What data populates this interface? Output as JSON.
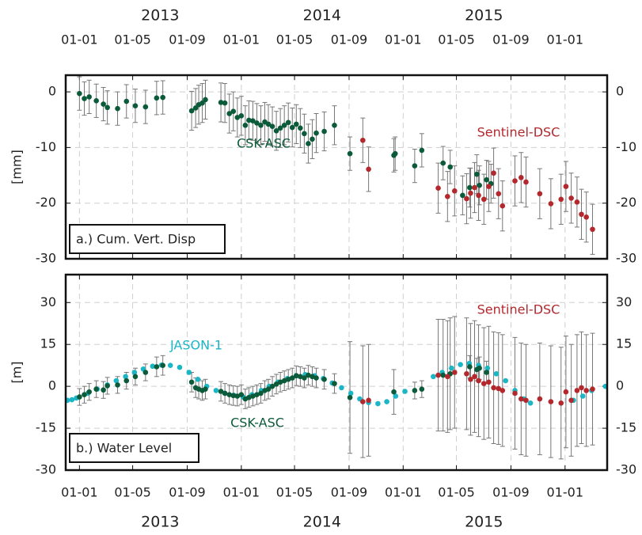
{
  "chart_data": [
    {
      "type": "scatter",
      "panel_label": "a.) Cum. Vert. Disp",
      "ylabel": "[mm]",
      "grid": true,
      "xlim": [
        "2012-12-01",
        "2016-04-05"
      ],
      "xticks": [
        {
          "value": "2013-01-01",
          "label": "01-01"
        },
        {
          "value": "2013-05-01",
          "label": "01-05"
        },
        {
          "value": "2013-09-01",
          "label": "01-09"
        },
        {
          "value": "2014-01-01",
          "label": "01-01"
        },
        {
          "value": "2014-05-01",
          "label": "01-05"
        },
        {
          "value": "2014-09-01",
          "label": "01-09"
        },
        {
          "value": "2015-01-01",
          "label": "01-01"
        },
        {
          "value": "2015-05-01",
          "label": "01-05"
        },
        {
          "value": "2015-09-01",
          "label": "01-09"
        },
        {
          "value": "2016-01-01",
          "label": "01-01"
        }
      ],
      "year_labels": [
        {
          "value": "2013-07-02",
          "label": "2013"
        },
        {
          "value": "2014-07-02",
          "label": "2014"
        },
        {
          "value": "2015-07-02",
          "label": "2015"
        }
      ],
      "ylim": [
        -30,
        3
      ],
      "yticks": [
        -30,
        -20,
        -10,
        0
      ],
      "series": [
        {
          "name": "CSK-ASC",
          "color": "#0b5a3a",
          "x": [
            "2013-01-01",
            "2013-01-12",
            "2013-01-23",
            "2013-02-08",
            "2013-02-24",
            "2013-03-05",
            "2013-03-28",
            "2013-04-17",
            "2013-05-07",
            "2013-05-30",
            "2013-06-24",
            "2013-07-08",
            "2013-09-11",
            "2013-09-20",
            "2013-09-27",
            "2013-10-05",
            "2013-10-12",
            "2013-11-16",
            "2013-11-25",
            "2013-12-05",
            "2013-12-14",
            "2013-12-23",
            "2014-01-01",
            "2014-01-10",
            "2014-01-18",
            "2014-01-27",
            "2014-02-05",
            "2014-02-14",
            "2014-02-23",
            "2014-03-03",
            "2014-03-12",
            "2014-03-21",
            "2014-03-30",
            "2014-04-08",
            "2014-04-17",
            "2014-04-26",
            "2014-05-05",
            "2014-05-14",
            "2014-05-23",
            "2014-06-01",
            "2014-06-10",
            "2014-06-19",
            "2014-07-07",
            "2014-07-30",
            "2014-09-03",
            "2014-12-11",
            "2014-12-14",
            "2015-01-27",
            "2015-02-12",
            "2015-04-01",
            "2015-04-17",
            "2015-05-15",
            "2015-05-31",
            "2015-06-16",
            "2015-06-22",
            "2015-07-08",
            "2015-07-18"
          ],
          "values": [
            -0.3,
            -1.2,
            -0.9,
            -1.6,
            -2.2,
            -2.8,
            -3.0,
            -1.7,
            -2.5,
            -2.7,
            -1.1,
            -1.0,
            -3.4,
            -2.9,
            -2.3,
            -2.0,
            -1.4,
            -1.9,
            -2.0,
            -3.9,
            -3.5,
            -4.6,
            -4.3,
            -6.0,
            -5.1,
            -5.2,
            -5.6,
            -6.0,
            -5.4,
            -5.8,
            -6.2,
            -7.0,
            -6.5,
            -6.0,
            -5.5,
            -6.4,
            -5.8,
            -6.5,
            -7.5,
            -9.3,
            -8.5,
            -7.4,
            -7.1,
            -6.0,
            -11.1,
            -11.4,
            -11.1,
            -13.3,
            -10.5,
            -12.8,
            -13.5,
            -18.6,
            -17.2,
            -14.8,
            -16.8,
            -15.8,
            -16.5
          ],
          "errors": [
            3,
            3,
            3,
            3,
            3,
            3,
            3,
            3,
            3,
            3,
            3,
            3,
            3.5,
            3.5,
            3.5,
            3.5,
            3.5,
            3.5,
            3.5,
            3.5,
            3.5,
            3.5,
            3.5,
            3.5,
            3.5,
            3.5,
            3.5,
            3.5,
            3.5,
            3.5,
            3.5,
            3.5,
            3.5,
            3.5,
            3.5,
            3.5,
            3.5,
            3.5,
            3.5,
            3.5,
            3.5,
            3.5,
            3.5,
            3.5,
            3,
            3,
            3,
            3,
            3,
            3,
            3,
            3.5,
            3.5,
            3.5,
            3.5,
            3.5,
            3.5
          ]
        },
        {
          "name": "Sentinel-DSC",
          "color": "#b3282d",
          "x": [
            "2014-10-02",
            "2014-10-15",
            "2015-03-21",
            "2015-04-11",
            "2015-04-27",
            "2015-05-24",
            "2015-06-02",
            "2015-06-11",
            "2015-06-20",
            "2015-07-02",
            "2015-07-13",
            "2015-07-24",
            "2015-08-04",
            "2015-08-13",
            "2015-09-10",
            "2015-09-24",
            "2015-10-05",
            "2015-11-05",
            "2015-11-30",
            "2015-12-23",
            "2016-01-03",
            "2016-01-15",
            "2016-01-28",
            "2016-02-07",
            "2016-02-18",
            "2016-03-03"
          ],
          "values": [
            -8.7,
            -13.9,
            -17.3,
            -18.8,
            -17.8,
            -19.2,
            -18.2,
            -17.2,
            -18.6,
            -19.3,
            -17.0,
            -14.6,
            -18.3,
            -20.5,
            -16.0,
            -15.4,
            -16.2,
            -18.3,
            -20.1,
            -19.3,
            -17.0,
            -19.1,
            -19.8,
            -22.0,
            -22.5,
            -24.7
          ],
          "errors": [
            4,
            4,
            4.5,
            4.5,
            4.5,
            4.5,
            4.5,
            4.5,
            4.5,
            4.5,
            4.5,
            4.5,
            4.5,
            4.5,
            4.5,
            4.5,
            4.5,
            4.5,
            4.5,
            4.5,
            4.5,
            4.5,
            4.5,
            4.5,
            4.5,
            4.5
          ]
        }
      ]
    },
    {
      "type": "scatter",
      "panel_label": "b.) Water Level",
      "ylabel": "[m]",
      "grid": true,
      "xlim": [
        "2012-12-01",
        "2016-04-05"
      ],
      "xticks": [
        {
          "value": "2013-01-01",
          "label": "01-01"
        },
        {
          "value": "2013-05-01",
          "label": "01-05"
        },
        {
          "value": "2013-09-01",
          "label": "01-09"
        },
        {
          "value": "2014-01-01",
          "label": "01-01"
        },
        {
          "value": "2014-05-01",
          "label": "01-05"
        },
        {
          "value": "2014-09-01",
          "label": "01-09"
        },
        {
          "value": "2015-01-01",
          "label": "01-01"
        },
        {
          "value": "2015-05-01",
          "label": "01-05"
        },
        {
          "value": "2015-09-01",
          "label": "01-09"
        },
        {
          "value": "2016-01-01",
          "label": "01-01"
        }
      ],
      "year_labels": [
        {
          "value": "2013-07-02",
          "label": "2013"
        },
        {
          "value": "2014-07-02",
          "label": "2014"
        },
        {
          "value": "2015-07-02",
          "label": "2015"
        }
      ],
      "ylim": [
        -30,
        40
      ],
      "yticks": [
        -30,
        -15,
        0,
        15,
        30
      ],
      "series": [
        {
          "name": "JASON-1",
          "color": "#1bb6c6",
          "x": [
            "2012-12-05",
            "2012-12-15",
            "2012-12-25",
            "2013-01-20",
            "2013-02-10",
            "2013-03-05",
            "2013-03-25",
            "2013-04-15",
            "2013-05-05",
            "2013-05-25",
            "2013-06-15",
            "2013-07-05",
            "2013-07-25",
            "2013-08-15",
            "2013-09-05",
            "2013-09-25",
            "2013-10-15",
            "2013-11-05",
            "2013-11-25",
            "2013-12-15",
            "2014-01-05",
            "2014-01-25",
            "2014-02-15",
            "2014-03-05",
            "2014-03-25",
            "2014-04-15",
            "2014-05-05",
            "2014-05-25",
            "2014-06-15",
            "2014-07-05",
            "2014-07-25",
            "2014-08-15",
            "2014-09-05",
            "2014-09-25",
            "2014-10-15",
            "2014-11-05",
            "2014-11-25",
            "2014-12-15",
            "2015-01-05",
            "2015-03-10",
            "2015-03-30",
            "2015-04-20",
            "2015-05-10",
            "2015-05-30",
            "2015-06-20",
            "2015-07-10",
            "2015-07-30",
            "2015-08-20",
            "2015-09-10",
            "2015-09-30",
            "2015-10-15",
            "2016-01-20",
            "2016-02-10",
            "2016-03-01",
            "2016-04-01"
          ],
          "values": [
            -5.0,
            -4.8,
            -4.2,
            -2.5,
            -1.0,
            0.5,
            2.0,
            3.5,
            5.0,
            6.2,
            7.2,
            7.6,
            7.5,
            6.8,
            5.0,
            2.5,
            0.0,
            -1.5,
            -2.5,
            -3.2,
            -3.8,
            -3.0,
            -1.5,
            0.0,
            1.5,
            2.8,
            3.8,
            4.2,
            3.8,
            2.8,
            1.2,
            -0.5,
            -2.5,
            -4.5,
            -5.8,
            -6.2,
            -5.5,
            -3.5,
            -1.8,
            3.5,
            5.0,
            6.5,
            7.8,
            8.2,
            7.5,
            6.5,
            4.5,
            2.0,
            -1.5,
            -4.5,
            -6.0,
            -5.0,
            -3.5,
            -1.5,
            0.0
          ]
        },
        {
          "name": "CSK-ASC",
          "color": "#0b5a3a",
          "x": [
            "2013-01-01",
            "2013-01-12",
            "2013-01-23",
            "2013-02-08",
            "2013-02-24",
            "2013-03-05",
            "2013-03-28",
            "2013-04-17",
            "2013-05-07",
            "2013-05-30",
            "2013-06-24",
            "2013-07-08",
            "2013-09-11",
            "2013-09-20",
            "2013-09-27",
            "2013-10-05",
            "2013-10-12",
            "2013-11-16",
            "2013-11-25",
            "2013-12-05",
            "2013-12-14",
            "2013-12-23",
            "2014-01-01",
            "2014-01-10",
            "2014-01-18",
            "2014-01-27",
            "2014-02-05",
            "2014-02-14",
            "2014-02-23",
            "2014-03-03",
            "2014-03-12",
            "2014-03-21",
            "2014-03-30",
            "2014-04-08",
            "2014-04-17",
            "2014-04-26",
            "2014-05-05",
            "2014-05-14",
            "2014-05-23",
            "2014-06-01",
            "2014-06-10",
            "2014-06-19",
            "2014-07-07",
            "2014-07-30",
            "2014-09-03",
            "2014-12-11",
            "2015-01-27",
            "2015-02-12",
            "2015-04-01",
            "2015-04-17",
            "2015-05-31",
            "2015-06-16",
            "2015-06-22",
            "2015-07-08"
          ],
          "values": [
            -3.8,
            -3.0,
            -2.0,
            -1.0,
            -1.3,
            0.2,
            0.5,
            2.0,
            3.5,
            5.0,
            7.0,
            7.5,
            1.5,
            -0.5,
            -1.0,
            -1.5,
            -1.0,
            -1.8,
            -2.5,
            -3.0,
            -3.3,
            -3.5,
            -3.0,
            -4.5,
            -4.0,
            -3.5,
            -3.0,
            -2.5,
            -1.5,
            -1.0,
            0.0,
            0.8,
            1.5,
            2.0,
            2.5,
            3.0,
            3.8,
            3.5,
            3.0,
            4.0,
            3.5,
            3.0,
            2.5,
            1.0,
            -4.0,
            -2.0,
            -1.5,
            -1.0,
            4.0,
            4.5,
            7.0,
            6.0,
            6.5,
            5.0
          ],
          "errors": [
            3,
            3,
            3,
            3,
            3,
            3,
            3,
            3,
            3,
            3,
            3.5,
            3.5,
            3.5,
            3.5,
            3.5,
            3.5,
            3.5,
            3.5,
            3.5,
            3.5,
            3.5,
            3.5,
            3.5,
            3.5,
            3.5,
            3.5,
            3.5,
            3.5,
            3.5,
            3.5,
            3.5,
            3.5,
            3.5,
            3.5,
            3.5,
            3.5,
            3.5,
            3.5,
            3.5,
            3.5,
            3.5,
            3.5,
            3.5,
            3.5,
            20,
            8,
            3,
            3,
            20,
            20,
            4,
            4,
            4,
            4
          ]
        },
        {
          "name": "Sentinel-DSC",
          "color": "#b3282d",
          "x": [
            "2014-10-02",
            "2014-10-15",
            "2015-03-21",
            "2015-04-11",
            "2015-04-27",
            "2015-05-24",
            "2015-06-02",
            "2015-06-11",
            "2015-06-20",
            "2015-07-02",
            "2015-07-13",
            "2015-07-24",
            "2015-08-04",
            "2015-08-13",
            "2015-09-10",
            "2015-09-24",
            "2015-10-05",
            "2015-11-05",
            "2015-11-30",
            "2015-12-23",
            "2016-01-03",
            "2016-01-15",
            "2016-01-28",
            "2016-02-07",
            "2016-02-18",
            "2016-03-03"
          ],
          "values": [
            -5.5,
            -5.0,
            4.0,
            3.5,
            5.0,
            4.5,
            2.5,
            3.5,
            2.0,
            1.0,
            1.5,
            -0.5,
            -0.8,
            -1.5,
            -2.5,
            -4.5,
            -5.0,
            -4.5,
            -5.5,
            -6.0,
            -2.0,
            -5.0,
            -1.5,
            -0.5,
            -1.5,
            -1.0
          ],
          "errors": [
            20,
            20,
            20,
            20,
            20,
            20,
            20,
            20,
            20,
            20,
            20,
            20,
            20,
            20,
            20,
            20,
            20,
            20,
            20,
            20,
            20,
            20,
            20,
            20,
            20,
            20
          ]
        }
      ]
    }
  ]
}
